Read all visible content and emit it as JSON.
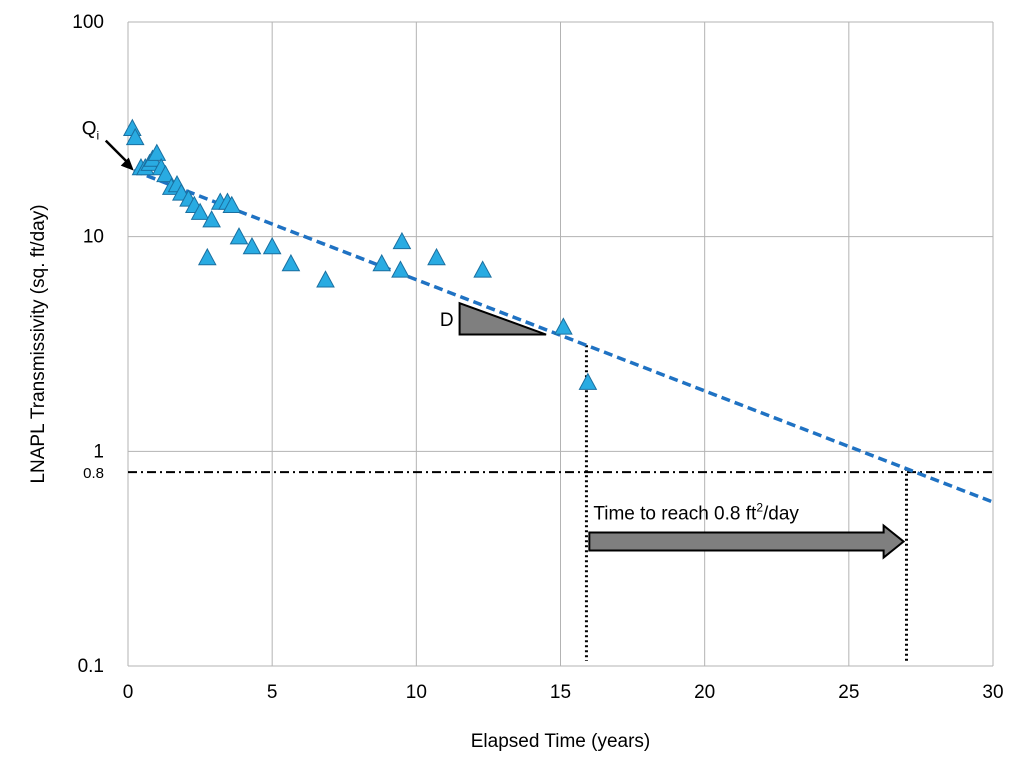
{
  "chart_data": {
    "type": "scatter",
    "xlabel": "Elapsed Time (years)",
    "ylabel": "LNAPL Transmissivity (sq. ft/day)",
    "xlim": [
      0,
      30
    ],
    "ylim": [
      0.1,
      100
    ],
    "y_scale": "log",
    "grid": true,
    "x_ticks": [
      "0",
      "5",
      "10",
      "15",
      "20",
      "25",
      "30"
    ],
    "y_ticks": [
      "0.1",
      "1",
      "10",
      "100"
    ],
    "colors": {
      "marker_fill": "#29abe2",
      "marker_stroke": "#1a6fa0",
      "trend": "#1f72c3",
      "reference": "#000000",
      "annotation_fill": "#7f7f7f"
    },
    "points": [
      {
        "x": 0.15,
        "y": 32
      },
      {
        "x": 0.25,
        "y": 29
      },
      {
        "x": 0.45,
        "y": 21
      },
      {
        "x": 0.6,
        "y": 21
      },
      {
        "x": 0.75,
        "y": 22
      },
      {
        "x": 0.85,
        "y": 23
      },
      {
        "x": 1.0,
        "y": 24.5
      },
      {
        "x": 1.15,
        "y": 21
      },
      {
        "x": 1.3,
        "y": 19.5
      },
      {
        "x": 1.5,
        "y": 17
      },
      {
        "x": 1.7,
        "y": 17.5
      },
      {
        "x": 1.85,
        "y": 16
      },
      {
        "x": 2.1,
        "y": 15
      },
      {
        "x": 2.3,
        "y": 14
      },
      {
        "x": 2.5,
        "y": 13
      },
      {
        "x": 2.75,
        "y": 8
      },
      {
        "x": 2.9,
        "y": 12
      },
      {
        "x": 3.2,
        "y": 14.5
      },
      {
        "x": 3.45,
        "y": 14.5
      },
      {
        "x": 3.6,
        "y": 14
      },
      {
        "x": 3.85,
        "y": 10
      },
      {
        "x": 4.3,
        "y": 9
      },
      {
        "x": 5.0,
        "y": 9
      },
      {
        "x": 5.65,
        "y": 7.5
      },
      {
        "x": 6.85,
        "y": 6.3
      },
      {
        "x": 8.8,
        "y": 7.5
      },
      {
        "x": 9.45,
        "y": 7
      },
      {
        "x": 9.5,
        "y": 9.5
      },
      {
        "x": 10.7,
        "y": 8
      },
      {
        "x": 12.3,
        "y": 7
      },
      {
        "x": 15.1,
        "y": 3.8
      },
      {
        "x": 15.95,
        "y": 2.1
      }
    ],
    "trend_line": {
      "x": [
        0.2,
        30
      ],
      "y": [
        20.3,
        0.58
      ]
    },
    "reference_line": {
      "y": 0.8,
      "label": "0.8"
    },
    "markers_vertical": [
      15.9,
      27.0
    ],
    "annotations": {
      "qi_label": "Q",
      "qi_subscript": "i",
      "slope_label": "D",
      "slope_triangle": {
        "x_left": 11.5,
        "x_right": 14.5,
        "y_top": 4.9,
        "y_bottom": 3.5
      },
      "arrow": {
        "text_main": "Time to reach 0.8 ft",
        "text_sup": "2",
        "text_end": "/day",
        "x_start": 16.0,
        "x_end": 26.9,
        "y": 0.38
      }
    }
  }
}
